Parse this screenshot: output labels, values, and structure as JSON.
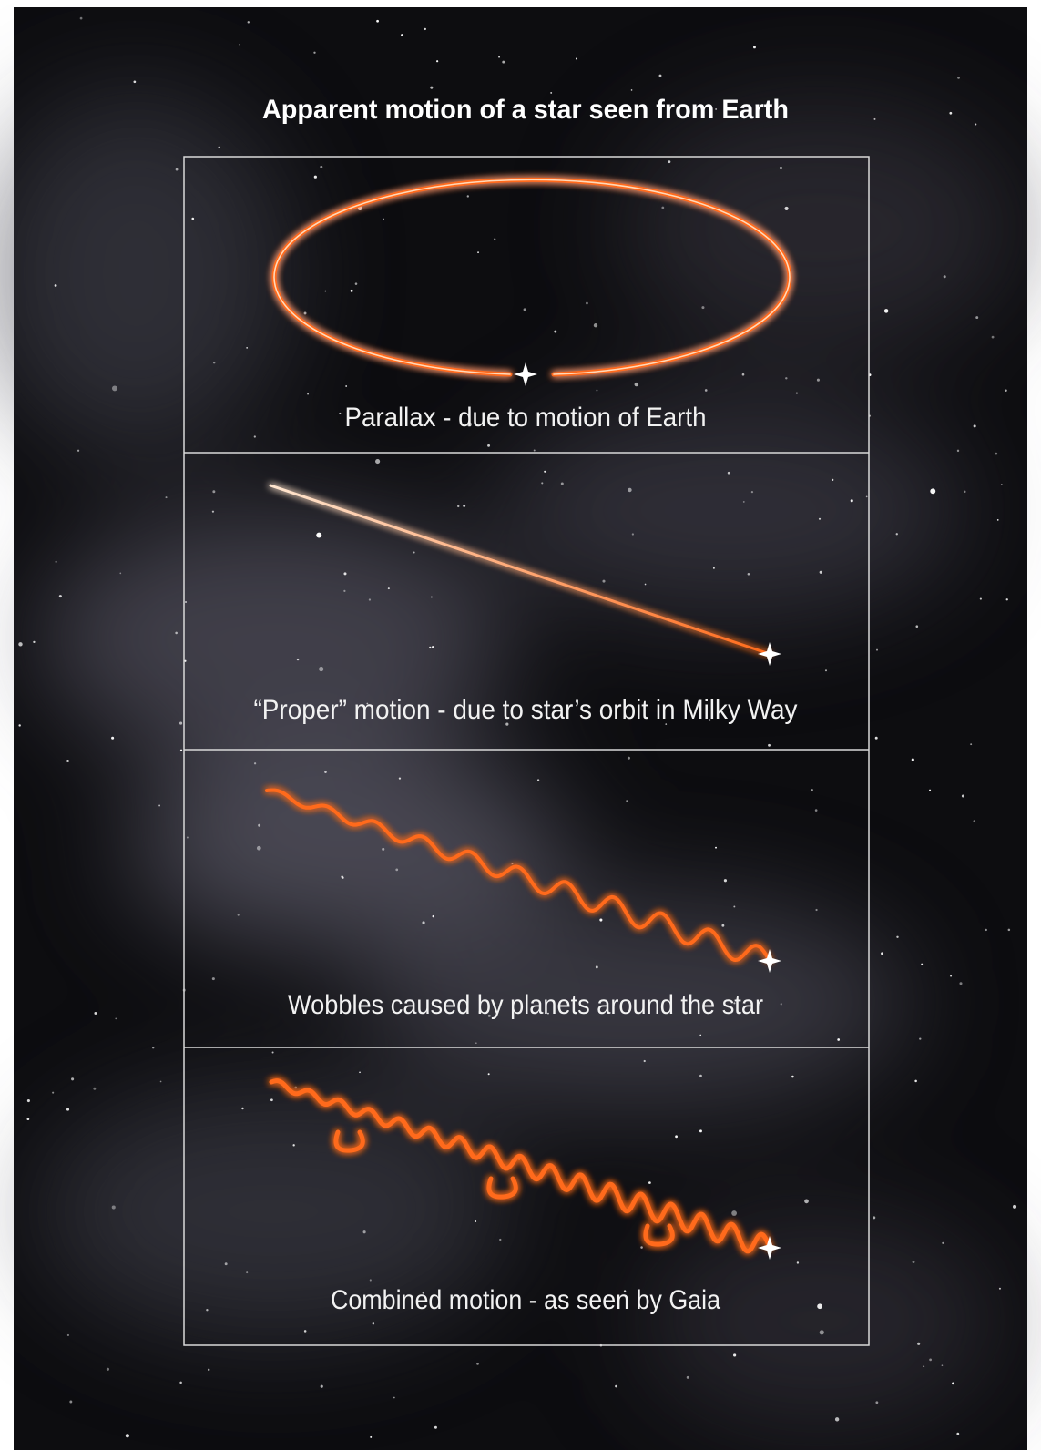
{
  "title": "Apparent motion of a star seen from Earth",
  "panels": [
    {
      "caption": "Parallax - due to motion of Earth"
    },
    {
      "caption": "“Proper” motion - due to star’s orbit in Milky Way"
    },
    {
      "caption": "Wobbles caused by planets around the star"
    },
    {
      "caption": "Combined motion - as seen by Gaia"
    }
  ]
}
